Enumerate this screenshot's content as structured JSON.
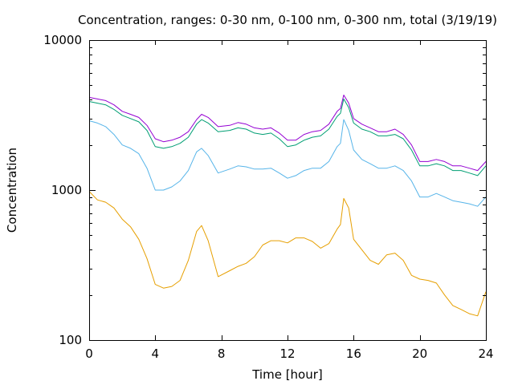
{
  "chart_data": {
    "type": "line",
    "title": "Concentration, ranges: 0-30 nm, 0-100 nm, 0-300 nm, total (3/19/19)",
    "xlabel": "Time [hour]",
    "ylabel": "Concentration",
    "xlim": [
      0,
      24
    ],
    "ylim": [
      100,
      10000
    ],
    "yscale": "log",
    "grid": false,
    "xticks": [
      0,
      4,
      8,
      12,
      16,
      20,
      24
    ],
    "xtick_labels": [
      "0",
      "4",
      "8",
      "12",
      "16",
      "20",
      "24"
    ],
    "yticks": [
      100,
      1000,
      10000
    ],
    "ytick_labels": [
      "100",
      "1000",
      "10000"
    ],
    "series": [
      {
        "color": "#9400d3",
        "x": [
          0,
          0.5,
          1,
          1.5,
          2,
          2.5,
          3,
          3.5,
          4,
          4.5,
          5,
          5.5,
          6,
          6.5,
          6.8,
          7.2,
          7.8,
          8.5,
          9,
          9.5,
          10,
          10.5,
          11,
          11.5,
          12,
          12.5,
          13,
          13.5,
          14,
          14.5,
          15,
          15.2,
          15.4,
          15.7,
          16,
          16.5,
          17,
          17.5,
          18,
          18.5,
          19,
          19.5,
          20,
          20.5,
          21,
          21.5,
          22,
          22.5,
          23,
          23.5,
          24
        ],
        "y": [
          4150,
          4050,
          3950,
          3700,
          3350,
          3200,
          3050,
          2700,
          2200,
          2100,
          2150,
          2250,
          2450,
          2950,
          3200,
          3050,
          2650,
          2700,
          2820,
          2750,
          2600,
          2550,
          2600,
          2400,
          2150,
          2150,
          2350,
          2450,
          2500,
          2750,
          3350,
          3500,
          4300,
          3800,
          3000,
          2750,
          2600,
          2450,
          2450,
          2550,
          2350,
          2000,
          1550,
          1550,
          1600,
          1550,
          1450,
          1450,
          1400,
          1350,
          1550
        ]
      },
      {
        "color": "#009e73",
        "x": [
          0,
          0.5,
          1,
          1.5,
          2,
          2.5,
          3,
          3.5,
          4,
          4.5,
          5,
          5.5,
          6,
          6.5,
          6.8,
          7.2,
          7.8,
          8.5,
          9,
          9.5,
          10,
          10.5,
          11,
          11.5,
          12,
          12.5,
          13,
          13.5,
          14,
          14.5,
          15,
          15.2,
          15.4,
          15.7,
          16,
          16.5,
          17,
          17.5,
          18,
          18.5,
          19,
          19.5,
          20,
          20.5,
          21,
          21.5,
          22,
          22.5,
          23,
          23.5,
          24
        ],
        "y": [
          3900,
          3800,
          3700,
          3450,
          3150,
          3000,
          2850,
          2500,
          1950,
          1900,
          1950,
          2050,
          2250,
          2750,
          2950,
          2800,
          2450,
          2500,
          2600,
          2550,
          2400,
          2350,
          2400,
          2200,
          1950,
          2000,
          2150,
          2250,
          2300,
          2550,
          3100,
          3250,
          4050,
          3550,
          2800,
          2550,
          2450,
          2300,
          2300,
          2350,
          2200,
          1850,
          1450,
          1450,
          1500,
          1450,
          1350,
          1350,
          1300,
          1250,
          1450
        ]
      },
      {
        "color": "#56b4e9",
        "x": [
          0,
          0.5,
          1,
          1.5,
          2,
          2.5,
          3,
          3.5,
          4,
          4.5,
          5,
          5.5,
          6,
          6.5,
          6.8,
          7.2,
          7.8,
          8.5,
          9,
          9.5,
          10,
          10.5,
          11,
          11.5,
          12,
          12.5,
          13,
          13.5,
          14,
          14.5,
          15,
          15.2,
          15.4,
          15.7,
          16,
          16.5,
          17,
          17.5,
          18,
          18.5,
          19,
          19.5,
          20,
          20.5,
          21,
          21.5,
          22,
          22.5,
          23,
          23.5,
          24
        ],
        "y": [
          2900,
          2800,
          2650,
          2350,
          2000,
          1900,
          1750,
          1400,
          1000,
          1000,
          1050,
          1150,
          1350,
          1800,
          1900,
          1700,
          1300,
          1380,
          1450,
          1430,
          1380,
          1380,
          1400,
          1300,
          1200,
          1250,
          1350,
          1400,
          1400,
          1550,
          1950,
          2050,
          2950,
          2500,
          1850,
          1600,
          1500,
          1400,
          1400,
          1450,
          1350,
          1150,
          900,
          900,
          950,
          900,
          850,
          830,
          810,
          780,
          900
        ]
      },
      {
        "color": "#e69f00",
        "x": [
          0,
          0.5,
          1,
          1.5,
          2,
          2.5,
          3,
          3.5,
          4,
          4.5,
          5,
          5.5,
          6,
          6.5,
          6.8,
          7.2,
          7.8,
          8.5,
          9,
          9.5,
          10,
          10.5,
          11,
          11.5,
          12,
          12.5,
          13,
          13.5,
          14,
          14.5,
          15,
          15.2,
          15.4,
          15.7,
          16,
          16.5,
          17,
          17.5,
          18,
          18.5,
          19,
          19.5,
          20,
          20.5,
          21,
          21.5,
          22,
          22.5,
          23,
          23.5,
          24
        ],
        "y": [
          980,
          860,
          830,
          760,
          640,
          570,
          470,
          350,
          235,
          222,
          228,
          250,
          340,
          530,
          580,
          460,
          265,
          290,
          310,
          325,
          360,
          430,
          460,
          460,
          445,
          480,
          480,
          455,
          410,
          440,
          550,
          590,
          880,
          760,
          470,
          400,
          340,
          320,
          370,
          380,
          340,
          270,
          255,
          250,
          240,
          200,
          170,
          160,
          150,
          145,
          210
        ]
      }
    ]
  }
}
